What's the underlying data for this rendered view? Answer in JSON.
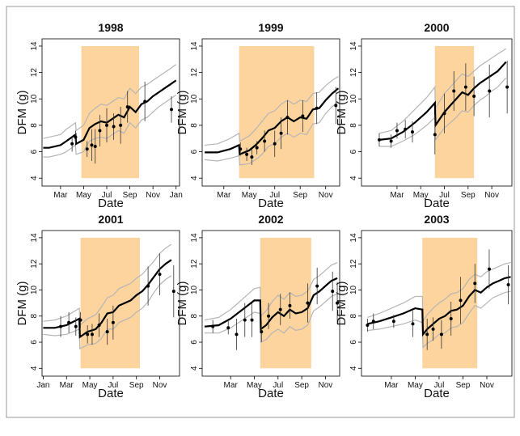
{
  "chart_data": [
    {
      "type": "line",
      "title": "1998",
      "xlabel": "Date",
      "ylabel": "DFM (g)",
      "xlim": [
        1.4,
        13.3
      ],
      "ylim": [
        3.4,
        14.55
      ],
      "xticks": [
        {
          "value": 3,
          "label": "Mar"
        },
        {
          "value": 5,
          "label": "May"
        },
        {
          "value": 7,
          "label": "Jul"
        },
        {
          "value": 9,
          "label": "Sep"
        },
        {
          "value": 11,
          "label": "Nov"
        },
        {
          "value": 13,
          "label": "Jan"
        }
      ],
      "yticks": [
        4,
        6,
        8,
        10,
        12,
        14
      ],
      "shade": {
        "x": [
          4.8,
          9.8
        ],
        "color": "#fdd49e"
      },
      "x": [
        1.5,
        2,
        3,
        3.5,
        4.3,
        4.35,
        5,
        5.5,
        6,
        6.5,
        7,
        7.5,
        8,
        8.5,
        9,
        9.5,
        10,
        10.5,
        11,
        11.5,
        12,
        12.5,
        13
      ],
      "series": [
        {
          "color": "#b5b5b5",
          "values": [
            7.0,
            7.1,
            7.3,
            7.7,
            8.2,
            7.6,
            8.0,
            8.9,
            9.3,
            9.6,
            9.5,
            9.8,
            10.1,
            10.0,
            10.8,
            10.4,
            10.9,
            11.1,
            11.4,
            11.7,
            12.0,
            12.3,
            12.6
          ]
        },
        {
          "color": "#b5b5b5",
          "values": [
            5.6,
            5.6,
            5.8,
            6.0,
            6.5,
            5.8,
            6.0,
            6.8,
            7.0,
            7.1,
            7.0,
            7.3,
            7.6,
            7.4,
            8.2,
            7.8,
            8.4,
            8.6,
            9.0,
            9.4,
            9.7,
            10.0,
            10.3
          ]
        },
        {
          "color": "#000000",
          "values": [
            6.3,
            6.3,
            6.5,
            6.8,
            7.3,
            6.6,
            6.9,
            7.8,
            8.1,
            8.3,
            8.2,
            8.5,
            8.8,
            8.6,
            9.4,
            9.0,
            9.6,
            9.8,
            10.2,
            10.5,
            10.8,
            11.1,
            11.4
          ]
        }
      ],
      "points": {
        "color": "#000000",
        "x": [
          4.0,
          4.3,
          5.3,
          5.7,
          6.0,
          6.4,
          7.0,
          7.6,
          8.2,
          8.8,
          10.3,
          12.6
        ],
        "values": [
          6.6,
          7.1,
          6.2,
          6.5,
          6.4,
          7.6,
          8.0,
          7.9,
          8.0,
          9.4,
          9.8,
          9.2
        ],
        "errors": [
          0.6,
          0.5,
          0.6,
          1.2,
          1.3,
          1.2,
          1.3,
          1.0,
          1.4,
          1.2,
          1.5,
          1.0
        ]
      }
    },
    {
      "type": "line",
      "title": "1999",
      "xlabel": "Date",
      "ylabel": "DFM (g)",
      "xlim": [
        1.3,
        12.1
      ],
      "ylim": [
        3.4,
        14.55
      ],
      "xticks": [
        {
          "value": 3,
          "label": "Mar"
        },
        {
          "value": 5,
          "label": "May"
        },
        {
          "value": 7,
          "label": "Jul"
        },
        {
          "value": 9,
          "label": "Sep"
        },
        {
          "value": 11,
          "label": "Nov"
        }
      ],
      "yticks": [
        4,
        6,
        8,
        10,
        12,
        14
      ],
      "shade": {
        "x": [
          4.2,
          10.1
        ],
        "color": "#fdd49e"
      },
      "x": [
        1.5,
        2.5,
        3.5,
        4.2,
        4.25,
        5,
        5.5,
        6,
        6.5,
        7,
        7.5,
        8,
        8.5,
        9,
        9.5,
        10,
        10.5,
        11,
        11.5,
        12
      ],
      "series": [
        {
          "color": "#b5b5b5",
          "values": [
            6.5,
            6.6,
            7.0,
            7.4,
            6.8,
            7.2,
            7.7,
            8.3,
            8.9,
            9.1,
            9.6,
            9.9,
            9.6,
            9.9,
            9.8,
            10.4,
            10.5,
            11.0,
            11.4,
            11.7
          ]
        },
        {
          "color": "#b5b5b5",
          "values": [
            5.4,
            5.3,
            5.5,
            5.7,
            5.0,
            5.1,
            5.4,
            5.8,
            6.4,
            6.6,
            7.1,
            7.4,
            7.1,
            7.4,
            7.3,
            8.1,
            8.2,
            8.9,
            9.4,
            9.8
          ]
        },
        {
          "color": "#000000",
          "values": [
            5.95,
            5.95,
            6.2,
            6.5,
            5.8,
            6.1,
            6.5,
            7.0,
            7.6,
            7.8,
            8.3,
            8.6,
            8.3,
            8.6,
            8.5,
            9.2,
            9.3,
            9.9,
            10.4,
            10.8
          ]
        }
      ],
      "points": {
        "color": "#000000",
        "x": [
          4.3,
          4.8,
          5.2,
          5.6,
          6.2,
          7.0,
          7.5,
          8.0,
          9.2,
          10.3,
          11.8
        ],
        "values": [
          6.2,
          5.8,
          5.6,
          6.3,
          6.8,
          6.6,
          7.4,
          8.6,
          8.7,
          9.3,
          9.5
        ],
        "errors": [
          0.5,
          0.5,
          0.6,
          0.5,
          0.8,
          1.0,
          1.2,
          1.3,
          1.2,
          1.2,
          1.4
        ]
      }
    },
    {
      "type": "line",
      "title": "2000",
      "xlabel": "Date",
      "ylabel": "DFM (g)",
      "xlim": [
        0.0,
        12.7
      ],
      "ylim": [
        3.4,
        14.55
      ],
      "xticks": [
        {
          "value": 3,
          "label": "Mar"
        },
        {
          "value": 5,
          "label": "May"
        },
        {
          "value": 7,
          "label": "Jul"
        },
        {
          "value": 9,
          "label": "Sep"
        },
        {
          "value": 11,
          "label": "Nov"
        }
      ],
      "yticks": [
        4,
        6,
        8,
        10,
        12,
        14
      ],
      "shade": {
        "x": [
          6.2,
          9.5
        ],
        "color": "#fdd49e"
      },
      "x": [
        1.5,
        2.5,
        3.5,
        4.5,
        5.5,
        6.2,
        6.25,
        7,
        7.5,
        8,
        8.5,
        9,
        9.5,
        10,
        10.5,
        11,
        11.5,
        12.2
      ],
      "series": [
        {
          "color": "#b5b5b5",
          "values": [
            7.4,
            7.6,
            8.3,
            9.2,
            10.1,
            10.9,
            9.3,
            10.4,
            10.9,
            11.4,
            11.9,
            11.7,
            12.1,
            12.5,
            12.8,
            13.1,
            13.4,
            13.8
          ]
        },
        {
          "color": "#b5b5b5",
          "values": [
            6.4,
            6.4,
            6.8,
            7.3,
            8.0,
            8.6,
            6.9,
            7.8,
            8.2,
            8.6,
            9.1,
            9.0,
            9.5,
            9.9,
            10.2,
            10.6,
            10.9,
            11.6
          ]
        },
        {
          "color": "#000000",
          "values": [
            6.9,
            7.0,
            7.5,
            8.2,
            9.0,
            9.7,
            8.0,
            9.0,
            9.5,
            10.0,
            10.5,
            10.3,
            10.8,
            11.2,
            11.5,
            11.8,
            12.1,
            12.8
          ]
        }
      ],
      "points": {
        "color": "#000000",
        "x": [
          1.5,
          2.5,
          3.0,
          3.7,
          4.3,
          6.2,
          7.0,
          7.8,
          8.8,
          9.5,
          10.8,
          12.3
        ],
        "values": [
          6.9,
          6.8,
          7.6,
          7.7,
          7.5,
          7.3,
          8.9,
          10.6,
          10.9,
          10.2,
          10.6,
          10.9
        ],
        "errors": [
          0.5,
          0.5,
          0.6,
          0.7,
          0.8,
          1.5,
          1.5,
          1.5,
          1.8,
          1.5,
          2.0,
          2.0
        ]
      }
    },
    {
      "type": "line",
      "title": "2001",
      "xlabel": "Date",
      "ylabel": "DFM (g)",
      "xlim": [
        0.9,
        12.7
      ],
      "ylim": [
        3.4,
        14.55
      ],
      "xticks": [
        {
          "value": 1,
          "label": "Jan"
        },
        {
          "value": 3,
          "label": "Mar"
        },
        {
          "value": 5,
          "label": "May"
        },
        {
          "value": 7,
          "label": "Jul"
        },
        {
          "value": 9,
          "label": "Sep"
        },
        {
          "value": 11,
          "label": "Nov"
        }
      ],
      "yticks": [
        4,
        6,
        8,
        10,
        12,
        14
      ],
      "shade": {
        "x": [
          4.2,
          9.3
        ],
        "color": "#fdd49e"
      },
      "x": [
        1,
        2,
        3,
        4.1,
        4.15,
        4.8,
        5.5,
        6,
        6.5,
        7,
        7.5,
        8,
        8.5,
        9,
        9.5,
        10,
        10.5,
        11,
        11.5,
        12
      ],
      "series": [
        {
          "color": "#b5b5b5",
          "values": [
            7.6,
            7.7,
            8.0,
            8.6,
            7.3,
            7.8,
            8.1,
            8.7,
            9.4,
            9.6,
            10.1,
            10.3,
            10.5,
            10.9,
            11.2,
            11.7,
            12.2,
            12.8,
            13.2,
            13.5
          ]
        },
        {
          "color": "#b5b5b5",
          "values": [
            6.6,
            6.5,
            6.6,
            7.0,
            5.5,
            5.8,
            5.9,
            6.3,
            7.0,
            7.0,
            7.5,
            7.7,
            7.9,
            8.3,
            8.6,
            9.1,
            9.8,
            10.4,
            10.8,
            11.1
          ]
        },
        {
          "color": "#000000",
          "values": [
            7.1,
            7.1,
            7.3,
            7.8,
            6.4,
            6.8,
            7.0,
            7.5,
            8.2,
            8.3,
            8.8,
            9.0,
            9.2,
            9.6,
            9.9,
            10.4,
            11.0,
            11.6,
            12.0,
            12.3
          ]
        }
      ],
      "points": {
        "color": "#000000",
        "x": [
          2.5,
          3.2,
          3.8,
          4.2,
          4.8,
          5.2,
          5.8,
          6.5,
          7.0,
          10.0,
          11.0,
          12.2
        ],
        "values": [
          7.2,
          7.5,
          7.2,
          7.7,
          6.6,
          6.6,
          7.3,
          6.8,
          7.5,
          10.3,
          11.2,
          9.9
        ],
        "errors": [
          0.8,
          0.8,
          0.7,
          0.6,
          0.7,
          0.8,
          0.9,
          1.0,
          1.3,
          1.5,
          1.6,
          2.0
        ]
      }
    },
    {
      "type": "line",
      "title": "2002",
      "xlabel": "Date",
      "ylabel": "DFM (g)",
      "xlim": [
        0.6,
        12.2
      ],
      "ylim": [
        3.4,
        14.55
      ],
      "xticks": [
        {
          "value": 3,
          "label": "Mar"
        },
        {
          "value": 5,
          "label": "May"
        },
        {
          "value": 7,
          "label": "Jul"
        },
        {
          "value": 9,
          "label": "Sep"
        },
        {
          "value": 11,
          "label": "Nov"
        }
      ],
      "yticks": [
        4,
        6,
        8,
        10,
        12,
        14
      ],
      "shade": {
        "x": [
          5.5,
          9.8
        ],
        "color": "#fdd49e"
      },
      "x": [
        0.8,
        2,
        3,
        4,
        5,
        5.5,
        5.55,
        6,
        6.5,
        7,
        7.5,
        8,
        8.5,
        9,
        9.5,
        10,
        10.5,
        11,
        11.5,
        12
      ],
      "series": [
        {
          "color": "#b5b5b5",
          "values": [
            7.7,
            7.9,
            8.5,
            9.3,
            10.1,
            10.2,
            8.0,
            8.4,
            9.1,
            9.6,
            9.3,
            9.8,
            9.5,
            9.6,
            9.9,
            10.8,
            11.1,
            11.5,
            11.9,
            12.1
          ]
        },
        {
          "color": "#b5b5b5",
          "values": [
            6.7,
            6.7,
            7.1,
            7.7,
            8.3,
            8.2,
            6.0,
            6.2,
            6.7,
            7.0,
            6.7,
            7.2,
            6.9,
            7.0,
            7.3,
            8.4,
            8.7,
            9.1,
            9.5,
            9.7
          ]
        },
        {
          "color": "#000000",
          "values": [
            7.2,
            7.3,
            7.8,
            8.5,
            9.2,
            9.2,
            7.0,
            7.3,
            7.9,
            8.3,
            8.0,
            8.5,
            8.2,
            8.3,
            8.6,
            9.6,
            9.9,
            10.3,
            10.7,
            10.9
          ]
        }
      ],
      "points": {
        "color": "#000000",
        "x": [
          1.5,
          2.8,
          3.5,
          4.2,
          4.8,
          5.6,
          6.2,
          7.2,
          8.0,
          9.5,
          10.3,
          11.6,
          12.0
        ],
        "values": [
          7.2,
          7.1,
          6.6,
          7.7,
          7.7,
          6.8,
          8.0,
          8.5,
          8.8,
          9.0,
          10.3,
          9.9,
          9.0
        ],
        "errors": [
          0.5,
          0.5,
          1.2,
          1.3,
          1.3,
          0.8,
          1.0,
          1.2,
          1.0,
          1.5,
          1.4,
          1.5,
          1.6
        ]
      }
    },
    {
      "type": "line",
      "title": "2003",
      "xlabel": "Date",
      "ylabel": "DFM (g)",
      "xlim": [
        0.5,
        13.1
      ],
      "ylim": [
        3.4,
        14.55
      ],
      "xticks": [
        {
          "value": 3,
          "label": "Mar"
        },
        {
          "value": 5,
          "label": "May"
        },
        {
          "value": 7,
          "label": "Jul"
        },
        {
          "value": 9,
          "label": "Sep"
        },
        {
          "value": 11,
          "label": "Nov"
        }
      ],
      "yticks": [
        4,
        6,
        8,
        10,
        12,
        14
      ],
      "shade": {
        "x": [
          5.6,
          10.2
        ],
        "color": "#fdd49e"
      },
      "x": [
        1,
        2,
        3,
        4,
        5,
        5.6,
        5.65,
        6,
        6.5,
        7,
        7.5,
        8,
        8.5,
        9,
        9.5,
        10,
        10.5,
        11,
        11.5,
        12,
        12.5,
        13
      ],
      "series": [
        {
          "color": "#b5b5b5",
          "values": [
            7.9,
            8.2,
            8.6,
            9.0,
            9.5,
            9.5,
            7.6,
            8.1,
            8.6,
            9.0,
            9.3,
            9.7,
            9.8,
            10.1,
            10.8,
            11.2,
            11.0,
            11.4,
            11.6,
            11.8,
            12.0,
            12.1
          ]
        },
        {
          "color": "#b5b5b5",
          "values": [
            6.9,
            7.0,
            7.2,
            7.4,
            7.7,
            7.5,
            5.6,
            5.9,
            6.2,
            6.6,
            6.7,
            7.1,
            7.2,
            7.5,
            8.2,
            8.8,
            8.6,
            9.0,
            9.4,
            9.6,
            9.8,
            9.9
          ]
        },
        {
          "color": "#000000",
          "values": [
            7.4,
            7.6,
            7.9,
            8.2,
            8.6,
            8.5,
            6.6,
            7.0,
            7.4,
            7.8,
            8.0,
            8.4,
            8.5,
            8.8,
            9.5,
            10.0,
            9.8,
            10.2,
            10.5,
            10.7,
            10.9,
            11.0
          ]
        }
      ],
      "points": {
        "color": "#000000",
        "x": [
          1.0,
          1.5,
          3.2,
          4.8,
          6.0,
          6.5,
          7.2,
          8.0,
          8.8,
          10.0,
          11.2,
          12.8
        ],
        "values": [
          7.3,
          7.6,
          7.6,
          7.4,
          6.6,
          7.0,
          6.6,
          7.8,
          9.2,
          10.5,
          11.6,
          10.4
        ],
        "errors": [
          0.5,
          0.6,
          0.5,
          1.0,
          1.2,
          0.9,
          1.1,
          1.3,
          1.8,
          1.5,
          1.5,
          1.5
        ]
      }
    }
  ]
}
